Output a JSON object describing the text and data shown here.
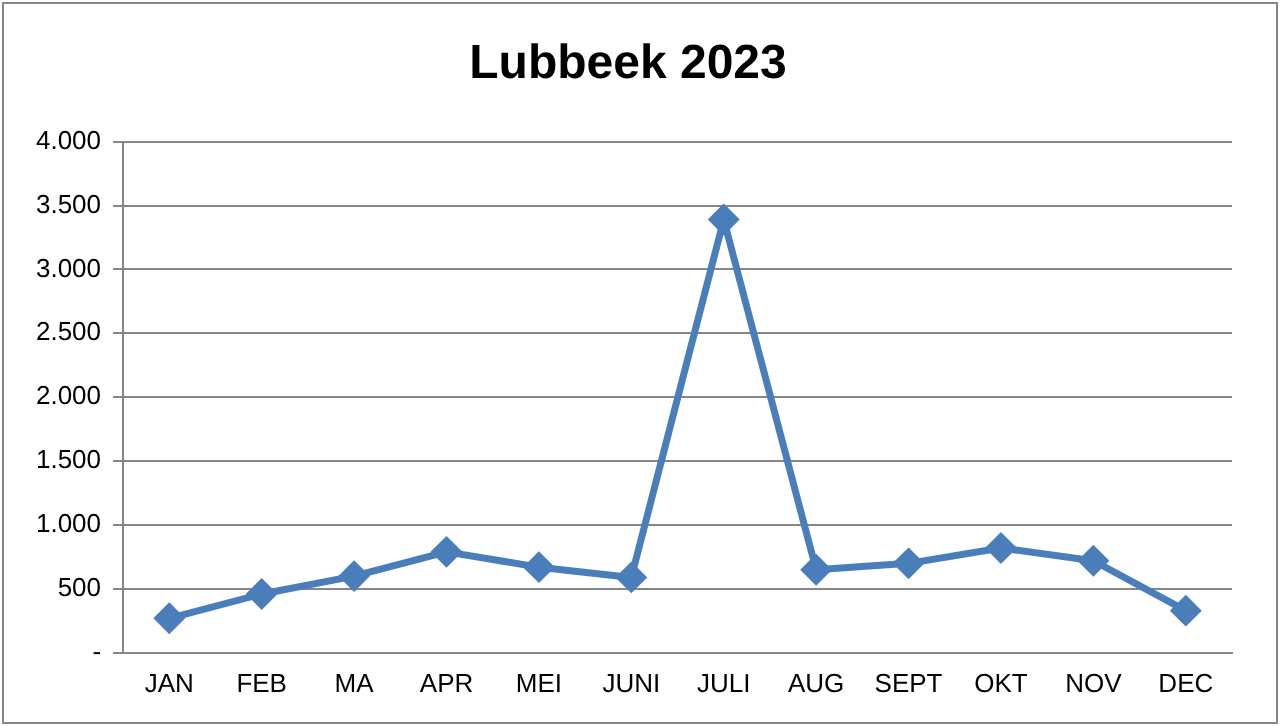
{
  "chart_data": {
    "type": "line",
    "title": "Lubbeek 2023",
    "categories": [
      "JAN",
      "FEB",
      "MA",
      "APR",
      "MEI",
      "JUNI",
      "JULI",
      "AUG",
      "SEPT",
      "OKT",
      "NOV",
      "DEC"
    ],
    "series": [
      {
        "color": "#4a7ebb",
        "values": [
          270,
          460,
          600,
          790,
          670,
          590,
          3390,
          650,
          700,
          820,
          720,
          330
        ]
      }
    ],
    "ylim": [
      0,
      4000
    ],
    "yticks": [
      {
        "value": 0,
        "label": "-"
      },
      {
        "value": 500,
        "label": "500"
      },
      {
        "value": 1000,
        "label": "1.000"
      },
      {
        "value": 1500,
        "label": "1.500"
      },
      {
        "value": 2000,
        "label": "2.000"
      },
      {
        "value": 2500,
        "label": "2.500"
      },
      {
        "value": 3000,
        "label": "3.000"
      },
      {
        "value": 3500,
        "label": "3.500"
      },
      {
        "value": 4000,
        "label": "4.000"
      }
    ],
    "grid": "y",
    "marker": "diamond",
    "line_style": "solid"
  }
}
